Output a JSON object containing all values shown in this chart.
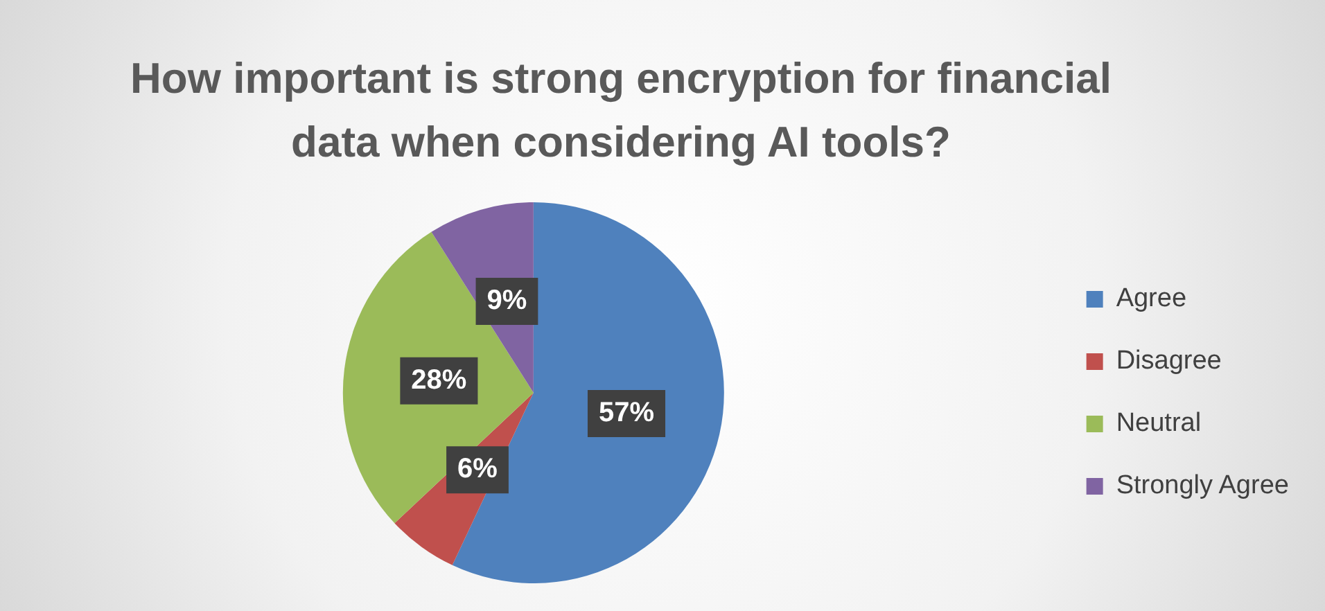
{
  "chart_data": {
    "type": "pie",
    "title": "How important is strong encryption for financial data when considering AI tools?",
    "categories": [
      "Agree",
      "Disagree",
      "Neutral",
      "Strongly Agree"
    ],
    "values": [
      57,
      6,
      28,
      9
    ],
    "colors": [
      "#4f81bd",
      "#c0504d",
      "#9bbb59",
      "#8064a2"
    ],
    "value_labels": [
      "57%",
      "6%",
      "28%",
      "9%"
    ],
    "legend": "right"
  }
}
